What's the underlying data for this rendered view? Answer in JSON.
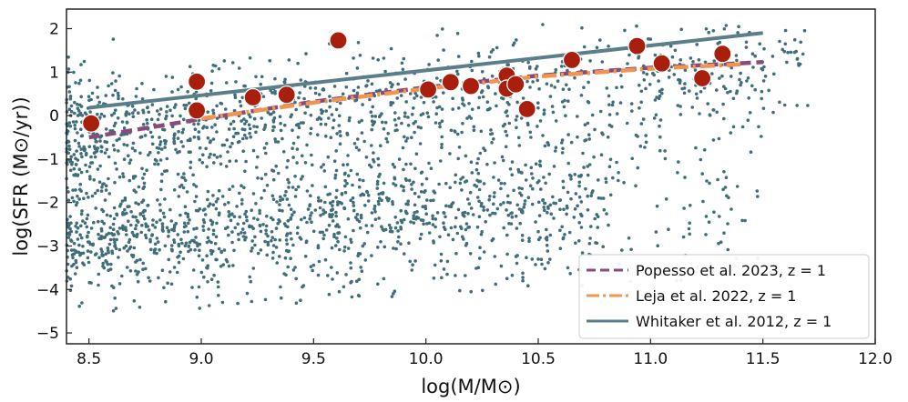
{
  "chart_data": {
    "type": "scatter",
    "title": "",
    "xlabel": "log(M/M⊙)",
    "ylabel": "log(SFR (M⊙/yr))",
    "xlim": [
      8.4,
      12.0
    ],
    "ylim": [
      -5.25,
      2.45
    ],
    "grid": false,
    "xticks": [
      8.5,
      9.0,
      9.5,
      10.0,
      10.5,
      11.0,
      11.5,
      12.0
    ],
    "xtick_labels": [
      "8.5",
      "9.0",
      "9.5",
      "10.0",
      "10.5",
      "11.0",
      "11.5",
      "12.0"
    ],
    "yticks": [
      2,
      1,
      0,
      -1,
      -2,
      -3,
      -4,
      -5
    ],
    "ytick_labels": [
      "2",
      "1",
      "0",
      "−1",
      "−2",
      "−3",
      "−4",
      "−5"
    ],
    "legend_position": "bottom-right",
    "background_population": {
      "name": "simulated galaxies",
      "color": "#3f6e7a",
      "approx_count": 2500,
      "description_ranges": {
        "x": [
          8.4,
          11.95
        ],
        "y": [
          -4.9,
          2.1
        ]
      }
    },
    "observed_points": {
      "name": "observed galaxies",
      "color": "#a8200d",
      "x": [
        8.51,
        8.98,
        8.98,
        9.23,
        9.38,
        9.61,
        10.01,
        10.11,
        10.2,
        10.36,
        10.36,
        10.4,
        10.45,
        10.65,
        10.94,
        11.05,
        11.23,
        11.32
      ],
      "y": [
        -0.18,
        0.78,
        0.12,
        0.42,
        0.48,
        1.73,
        0.6,
        0.77,
        0.68,
        0.92,
        0.62,
        0.72,
        0.15,
        1.28,
        1.6,
        1.2,
        0.86,
        1.42
      ]
    },
    "series": [
      {
        "name": "Popesso et al. 2023, z = 1",
        "style": "dashed",
        "color": "#8a4a7a",
        "x": [
          8.5,
          9.0,
          9.5,
          10.0,
          10.5,
          11.0,
          11.5
        ],
        "y": [
          -0.5,
          -0.08,
          0.32,
          0.65,
          0.92,
          1.1,
          1.23
        ]
      },
      {
        "name": "Leja et al. 2022, z = 1",
        "style": "dashdot",
        "color": "#f0944f",
        "x": [
          9.0,
          9.5,
          10.0,
          10.5,
          11.0,
          11.4
        ],
        "y": [
          -0.07,
          0.3,
          0.62,
          0.9,
          1.08,
          1.18
        ]
      },
      {
        "name": "Whitaker et al. 2012, z = 1",
        "style": "solid",
        "color": "#5a7f8a",
        "x": [
          8.5,
          11.5
        ],
        "y": [
          0.18,
          1.9
        ]
      }
    ]
  }
}
